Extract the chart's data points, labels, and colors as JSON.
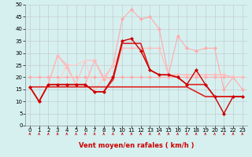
{
  "title": "",
  "xlabel": "Vent moyen/en rafales ( km/h )",
  "bg_color": "#d6f0f0",
  "grid_color": "#bbbbbb",
  "x_ticks": [
    0,
    1,
    2,
    3,
    4,
    5,
    6,
    7,
    8,
    9,
    10,
    11,
    12,
    13,
    14,
    15,
    16,
    17,
    18,
    19,
    20,
    21,
    22,
    23
  ],
  "ylim": [
    0,
    50
  ],
  "yticks": [
    0,
    5,
    10,
    15,
    20,
    25,
    30,
    35,
    40,
    45,
    50
  ],
  "series": [
    {
      "y": [
        16,
        10,
        17,
        29,
        25,
        17,
        17,
        27,
        19,
        25,
        44,
        48,
        44,
        45,
        40,
        21,
        37,
        32,
        31,
        32,
        32,
        15,
        20,
        15
      ],
      "color": "#ffaaaa",
      "lw": 0.8,
      "marker": "D",
      "ms": 2,
      "alpha": 1.0,
      "mfc": "#ffaaaa"
    },
    {
      "y": [
        20,
        20,
        20,
        20,
        20,
        20,
        20,
        20,
        20,
        20,
        20,
        20,
        20,
        20,
        20,
        20,
        20,
        20,
        20,
        20,
        20,
        20,
        20,
        20
      ],
      "color": "#ffaaaa",
      "lw": 0.8,
      "marker": "D",
      "ms": 2,
      "alpha": 1.0,
      "mfc": "#ffaaaa"
    },
    {
      "y": [
        16,
        10,
        17,
        29,
        25,
        17,
        27,
        27,
        20,
        25,
        32,
        32,
        32,
        23,
        21,
        21,
        21,
        21,
        21,
        21,
        21,
        21,
        20,
        20
      ],
      "color": "#ffbbbb",
      "lw": 0.8,
      "marker": null,
      "ms": 0,
      "alpha": 1.0,
      "mfc": "#ffbbbb"
    },
    {
      "y": [
        16,
        10,
        17,
        17,
        25,
        25,
        27,
        14,
        20,
        25,
        32,
        32,
        32,
        23,
        21,
        21,
        21,
        21,
        21,
        21,
        21,
        21,
        20,
        20
      ],
      "color": "#ffcccc",
      "lw": 0.8,
      "marker": null,
      "ms": 0,
      "alpha": 1.0,
      "mfc": "#ffcccc"
    },
    {
      "y": [
        16,
        10,
        17,
        29,
        24,
        17,
        17,
        27,
        20,
        19,
        32,
        32,
        32,
        32,
        32,
        21,
        21,
        21,
        21,
        21,
        21,
        21,
        20,
        20
      ],
      "color": "#ffbbbb",
      "lw": 0.8,
      "marker": "D",
      "ms": 2,
      "alpha": 1.0,
      "mfc": "#ffbbbb"
    },
    {
      "y": [
        16,
        16,
        16,
        16,
        16,
        16,
        16,
        16,
        16,
        16,
        16,
        16,
        16,
        16,
        16,
        16,
        16,
        16,
        14,
        12,
        12,
        12,
        12,
        12
      ],
      "color": "#dd2222",
      "lw": 1.2,
      "marker": null,
      "ms": 0,
      "alpha": 1.0,
      "mfc": "#dd2222"
    },
    {
      "y": [
        16,
        10,
        17,
        17,
        17,
        17,
        17,
        14,
        14,
        19,
        34,
        34,
        34,
        23,
        21,
        21,
        20,
        17,
        17,
        17,
        12,
        12,
        12,
        12
      ],
      "color": "#dd2222",
      "lw": 1.2,
      "marker": null,
      "ms": 0,
      "alpha": 1.0,
      "mfc": "#dd2222"
    },
    {
      "y": [
        16,
        10,
        17,
        17,
        17,
        17,
        17,
        14,
        14,
        20,
        35,
        36,
        31,
        23,
        21,
        21,
        20,
        17,
        23,
        17,
        12,
        5,
        12,
        12
      ],
      "color": "#cc0000",
      "lw": 1.0,
      "marker": "D",
      "ms": 2,
      "alpha": 1.0,
      "mfc": "#cc0000"
    }
  ],
  "arrow_color": "#cc0000",
  "tick_fontsize": 5,
  "xlabel_fontsize": 6,
  "xlabel_color": "#cc0000"
}
